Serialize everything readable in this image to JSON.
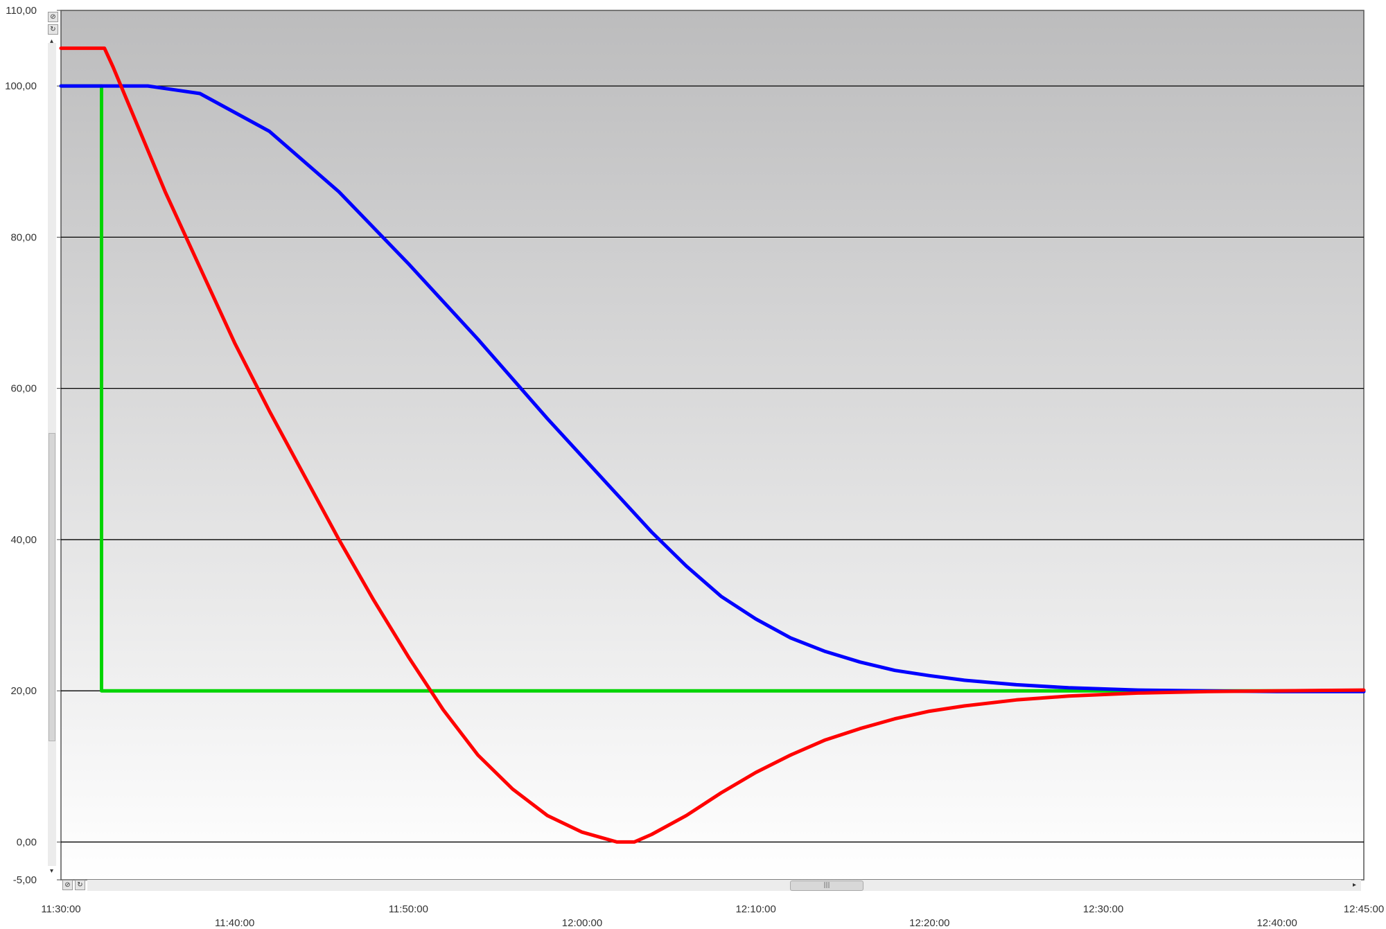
{
  "chart_data": {
    "type": "line",
    "title": "",
    "xlabel": "",
    "ylabel": "",
    "ylim": [
      -5,
      110
    ],
    "xlim": [
      "11:30:00",
      "12:45:00"
    ],
    "grid": true,
    "y_ticks": [
      {
        "value": 110,
        "label": "110,00"
      },
      {
        "value": 100,
        "label": "100,00"
      },
      {
        "value": 80,
        "label": "80,00"
      },
      {
        "value": 60,
        "label": "60,00"
      },
      {
        "value": 40,
        "label": "40,00"
      },
      {
        "value": 20,
        "label": "20,00"
      },
      {
        "value": 0,
        "label": "0,00"
      },
      {
        "value": -5,
        "label": "-5,00"
      }
    ],
    "x_ticks": [
      "11:30:00",
      "11:40:00",
      "11:50:00",
      "12:00:00",
      "12:10:00",
      "12:20:00",
      "12:30:00",
      "12:40:00",
      "12:45:00"
    ],
    "series": [
      {
        "color": "#00d400",
        "x": [
          "11:30:00",
          "11:32:20",
          "11:32:20",
          "12:45:00"
        ],
        "y": [
          100,
          100,
          20,
          20
        ]
      },
      {
        "color": "#0000ff",
        "x": [
          "11:30:00",
          "11:32:00",
          "11:35:00",
          "11:38:00",
          "11:42:00",
          "11:46:00",
          "11:50:00",
          "11:54:00",
          "11:58:00",
          "12:02:00",
          "12:04:00",
          "12:06:00",
          "12:08:00",
          "12:10:00",
          "12:12:00",
          "12:14:00",
          "12:16:00",
          "12:18:00",
          "12:20:00",
          "12:22:00",
          "12:25:00",
          "12:28:00",
          "12:32:00",
          "12:36:00",
          "12:40:00",
          "12:45:00"
        ],
        "y": [
          100,
          100,
          100,
          99,
          94,
          86,
          76.5,
          66.5,
          56,
          46,
          41,
          36.5,
          32.5,
          29.5,
          27,
          25.2,
          23.8,
          22.7,
          22,
          21.4,
          20.8,
          20.4,
          20.1,
          20,
          19.9,
          19.9
        ]
      },
      {
        "color": "#ff0000",
        "x": [
          "11:30:00",
          "11:32:00",
          "11:32:30",
          "11:33:00",
          "11:34:00",
          "11:36:00",
          "11:38:00",
          "11:40:00",
          "11:42:00",
          "11:44:00",
          "11:46:00",
          "11:48:00",
          "11:50:00",
          "11:52:00",
          "11:54:00",
          "11:56:00",
          "11:58:00",
          "12:00:00",
          "12:02:00",
          "12:03:00",
          "12:04:00",
          "12:06:00",
          "12:08:00",
          "12:10:00",
          "12:12:00",
          "12:14:00",
          "12:16:00",
          "12:18:00",
          "12:20:00",
          "12:22:00",
          "12:25:00",
          "12:28:00",
          "12:32:00",
          "12:36:00",
          "12:40:00",
          "12:45:00"
        ],
        "y": [
          105,
          105,
          105,
          102.5,
          97,
          86,
          76,
          66,
          57,
          48.5,
          40,
          32,
          24.5,
          17.5,
          11.5,
          7,
          3.5,
          1.3,
          0,
          0,
          1,
          3.5,
          6.5,
          9.2,
          11.5,
          13.5,
          15,
          16.3,
          17.3,
          18,
          18.8,
          19.3,
          19.7,
          19.9,
          20,
          20.1
        ]
      }
    ]
  }
}
